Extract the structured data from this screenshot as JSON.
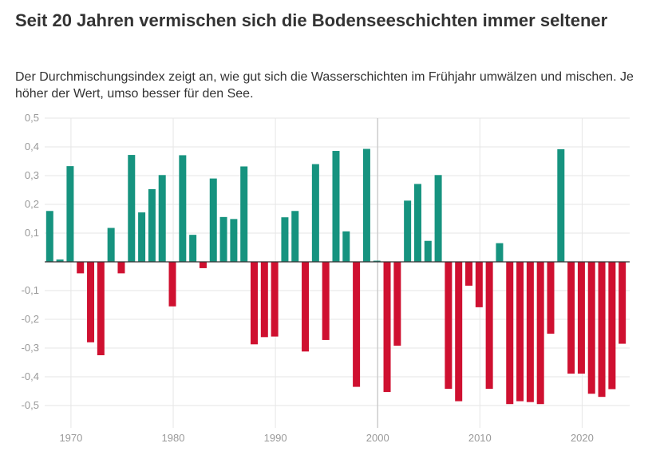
{
  "header": {
    "title": "Seit 20 Jahren vermischen sich die Bodenseeschichten immer seltener",
    "subtitle": "Der Durchmischungsindex zeigt an, wie gut sich die Wasserschichten im Frühjahr umwälzen und mischen. Je höher der Wert, umso besser für den See."
  },
  "colors": {
    "positive": "#16937f",
    "negative": "#cf1030",
    "grid": "#e6e6e6",
    "zero_line": "#333333",
    "tick_text": "#999999"
  },
  "chart_data": {
    "type": "bar",
    "title": "Seit 20 Jahren vermischen sich die Bodenseeschichten immer seltener",
    "xlabel": "",
    "ylabel": "",
    "ylim": [
      -0.5,
      0.5
    ],
    "y_ticks": [
      0.5,
      0.4,
      0.3,
      0.2,
      0.1,
      0,
      -0.1,
      -0.2,
      -0.3,
      -0.4,
      -0.5
    ],
    "y_tick_labels": [
      "0,5",
      "0,4",
      "0,3",
      "0,2",
      "0,1",
      "",
      "-0,1",
      "-0,2",
      "-0,3",
      "-0,4",
      "-0,5"
    ],
    "x_ticks": [
      1970,
      1980,
      1990,
      2000,
      2010,
      2020
    ],
    "x_tick_labels": [
      "1970",
      "1980",
      "1990",
      "2000",
      "2010",
      "2020"
    ],
    "highlight_year": 2000,
    "grid": true,
    "x": [
      1968,
      1969,
      1970,
      1971,
      1972,
      1973,
      1974,
      1975,
      1976,
      1977,
      1978,
      1979,
      1980,
      1981,
      1982,
      1983,
      1984,
      1985,
      1986,
      1987,
      1988,
      1989,
      1990,
      1991,
      1992,
      1993,
      1994,
      1995,
      1996,
      1997,
      1998,
      1999,
      2000,
      2001,
      2002,
      2003,
      2004,
      2005,
      2006,
      2007,
      2008,
      2009,
      2010,
      2011,
      2012,
      2013,
      2014,
      2015,
      2016,
      2017,
      2018,
      2019,
      2020,
      2021,
      2022,
      2023,
      2024
    ],
    "values": [
      0.177,
      0.008,
      0.333,
      -0.04,
      -0.28,
      -0.325,
      0.118,
      -0.04,
      0.372,
      0.172,
      0.253,
      0.302,
      -0.155,
      0.371,
      0.094,
      -0.022,
      0.29,
      0.156,
      0.149,
      0.332,
      -0.287,
      -0.262,
      -0.26,
      0.155,
      0.177,
      -0.312,
      0.34,
      -0.272,
      0.386,
      0.106,
      -0.435,
      0.393,
      0.004,
      -0.453,
      -0.292,
      0.213,
      0.271,
      0.073,
      0.302,
      -0.442,
      -0.485,
      -0.083,
      -0.158,
      -0.442,
      0.065,
      -0.495,
      -0.485,
      -0.488,
      -0.495,
      -0.25,
      0.392,
      -0.389,
      -0.389,
      -0.459,
      -0.47,
      -0.443,
      -0.285
    ]
  }
}
